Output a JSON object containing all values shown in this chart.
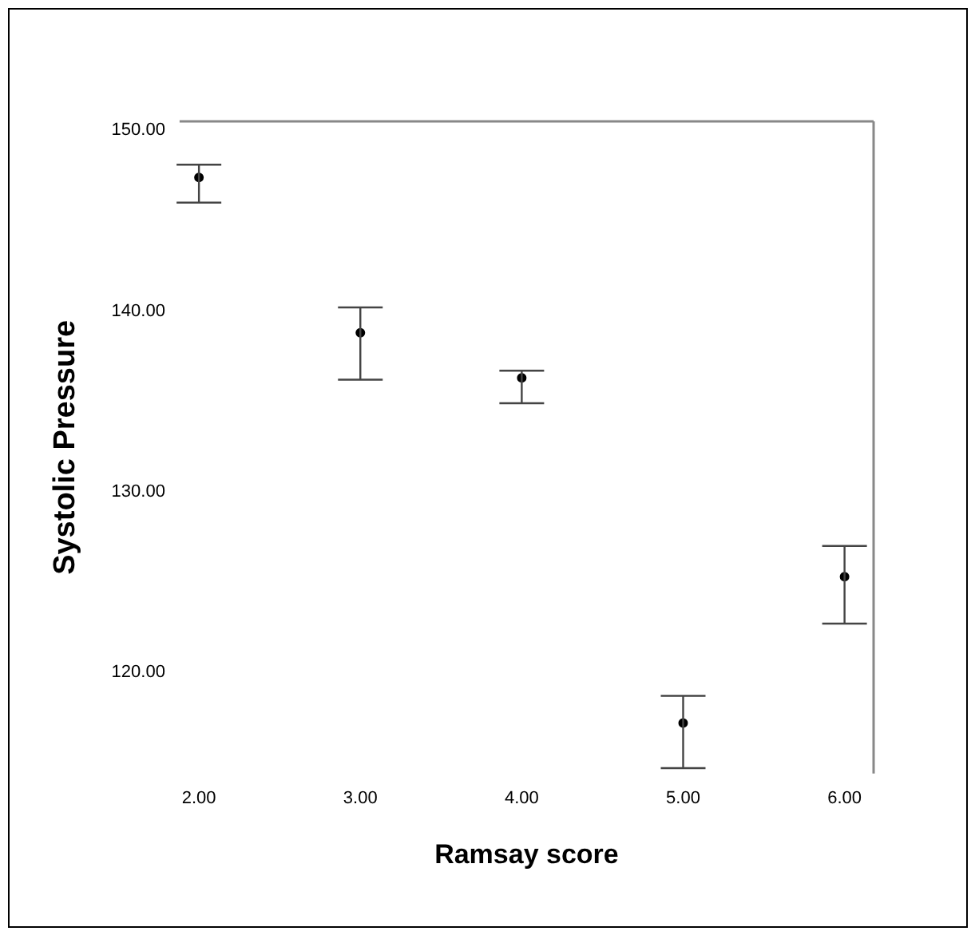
{
  "chart_data": {
    "type": "scatter",
    "xlabel": "Ramsay score",
    "ylabel": "Systolic Pressure",
    "x": [
      2,
      3,
      4,
      5,
      6
    ],
    "values": [
      147.4,
      138.8,
      136.3,
      117.2,
      125.3
    ],
    "errors": [
      [
        146.0,
        148.1
      ],
      [
        136.2,
        140.2
      ],
      [
        134.9,
        136.7
      ],
      [
        114.7,
        118.7
      ],
      [
        122.7,
        127.0
      ]
    ],
    "color": "#000000",
    "marker": "circle",
    "grid": false,
    "legend": false,
    "xlim": [
      1.88,
      6.18
    ],
    "ylim": [
      114.4,
      150.5
    ],
    "xticks": [
      {
        "value": 2,
        "label": "2.00"
      },
      {
        "value": 3,
        "label": "3.00"
      },
      {
        "value": 4,
        "label": "4.00"
      },
      {
        "value": 5,
        "label": "5.00"
      },
      {
        "value": 6,
        "label": "6.00"
      }
    ],
    "yticks": [
      {
        "value": 120,
        "label": "120.00"
      },
      {
        "value": 130,
        "label": "130.00"
      },
      {
        "value": 140,
        "label": "140.00"
      },
      {
        "value": 150,
        "label": "150.00"
      }
    ]
  }
}
